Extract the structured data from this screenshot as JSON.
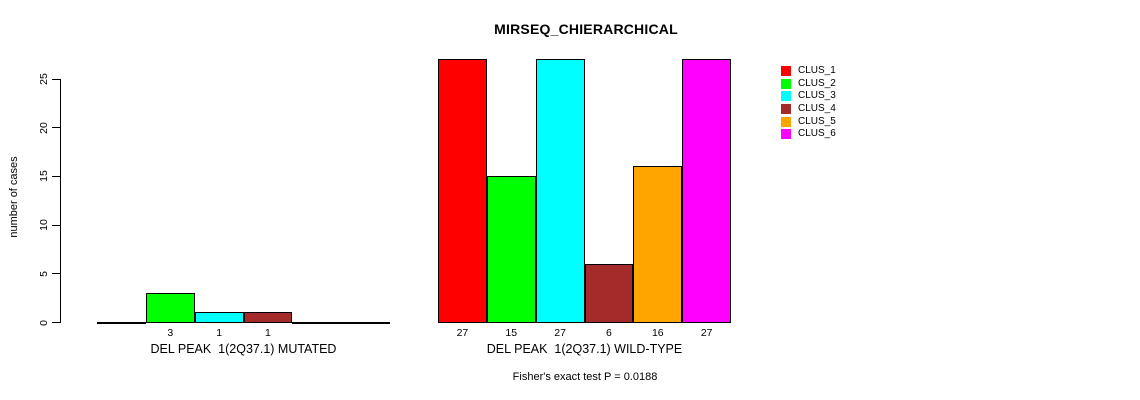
{
  "chart_data": {
    "type": "bar",
    "title": "MIRSEQ_CHIERARCHICAL",
    "xlabel": "",
    "ylabel": "number of cases",
    "ylim": [
      0,
      27
    ],
    "y_ticks": [
      0,
      5,
      10,
      15,
      20,
      25
    ],
    "grid": false,
    "legend_position": "right-outside-top",
    "background_color": "#FFFFFF",
    "bar_border_color": "#000000",
    "categories": [
      "DEL PEAK  1(2Q37.1) MUTATED",
      "DEL PEAK  1(2Q37.1) WILD-TYPE"
    ],
    "series": [
      {
        "name": "CLUS_1",
        "color": "#FF0000",
        "values": [
          0,
          27
        ]
      },
      {
        "name": "CLUS_2",
        "color": "#00FF00",
        "values": [
          3,
          15
        ]
      },
      {
        "name": "CLUS_3",
        "color": "#00FFFF",
        "values": [
          1,
          27
        ]
      },
      {
        "name": "CLUS_4",
        "color": "#A52A2A",
        "values": [
          1,
          6
        ]
      },
      {
        "name": "CLUS_5",
        "color": "#FFA500",
        "values": [
          0,
          16
        ]
      },
      {
        "name": "CLUS_6",
        "color": "#FF00FF",
        "values": [
          0,
          27
        ]
      }
    ],
    "value_labels_shown_only_if_positive": true,
    "annotation": "Fisher's exact test P = 0.0188"
  }
}
